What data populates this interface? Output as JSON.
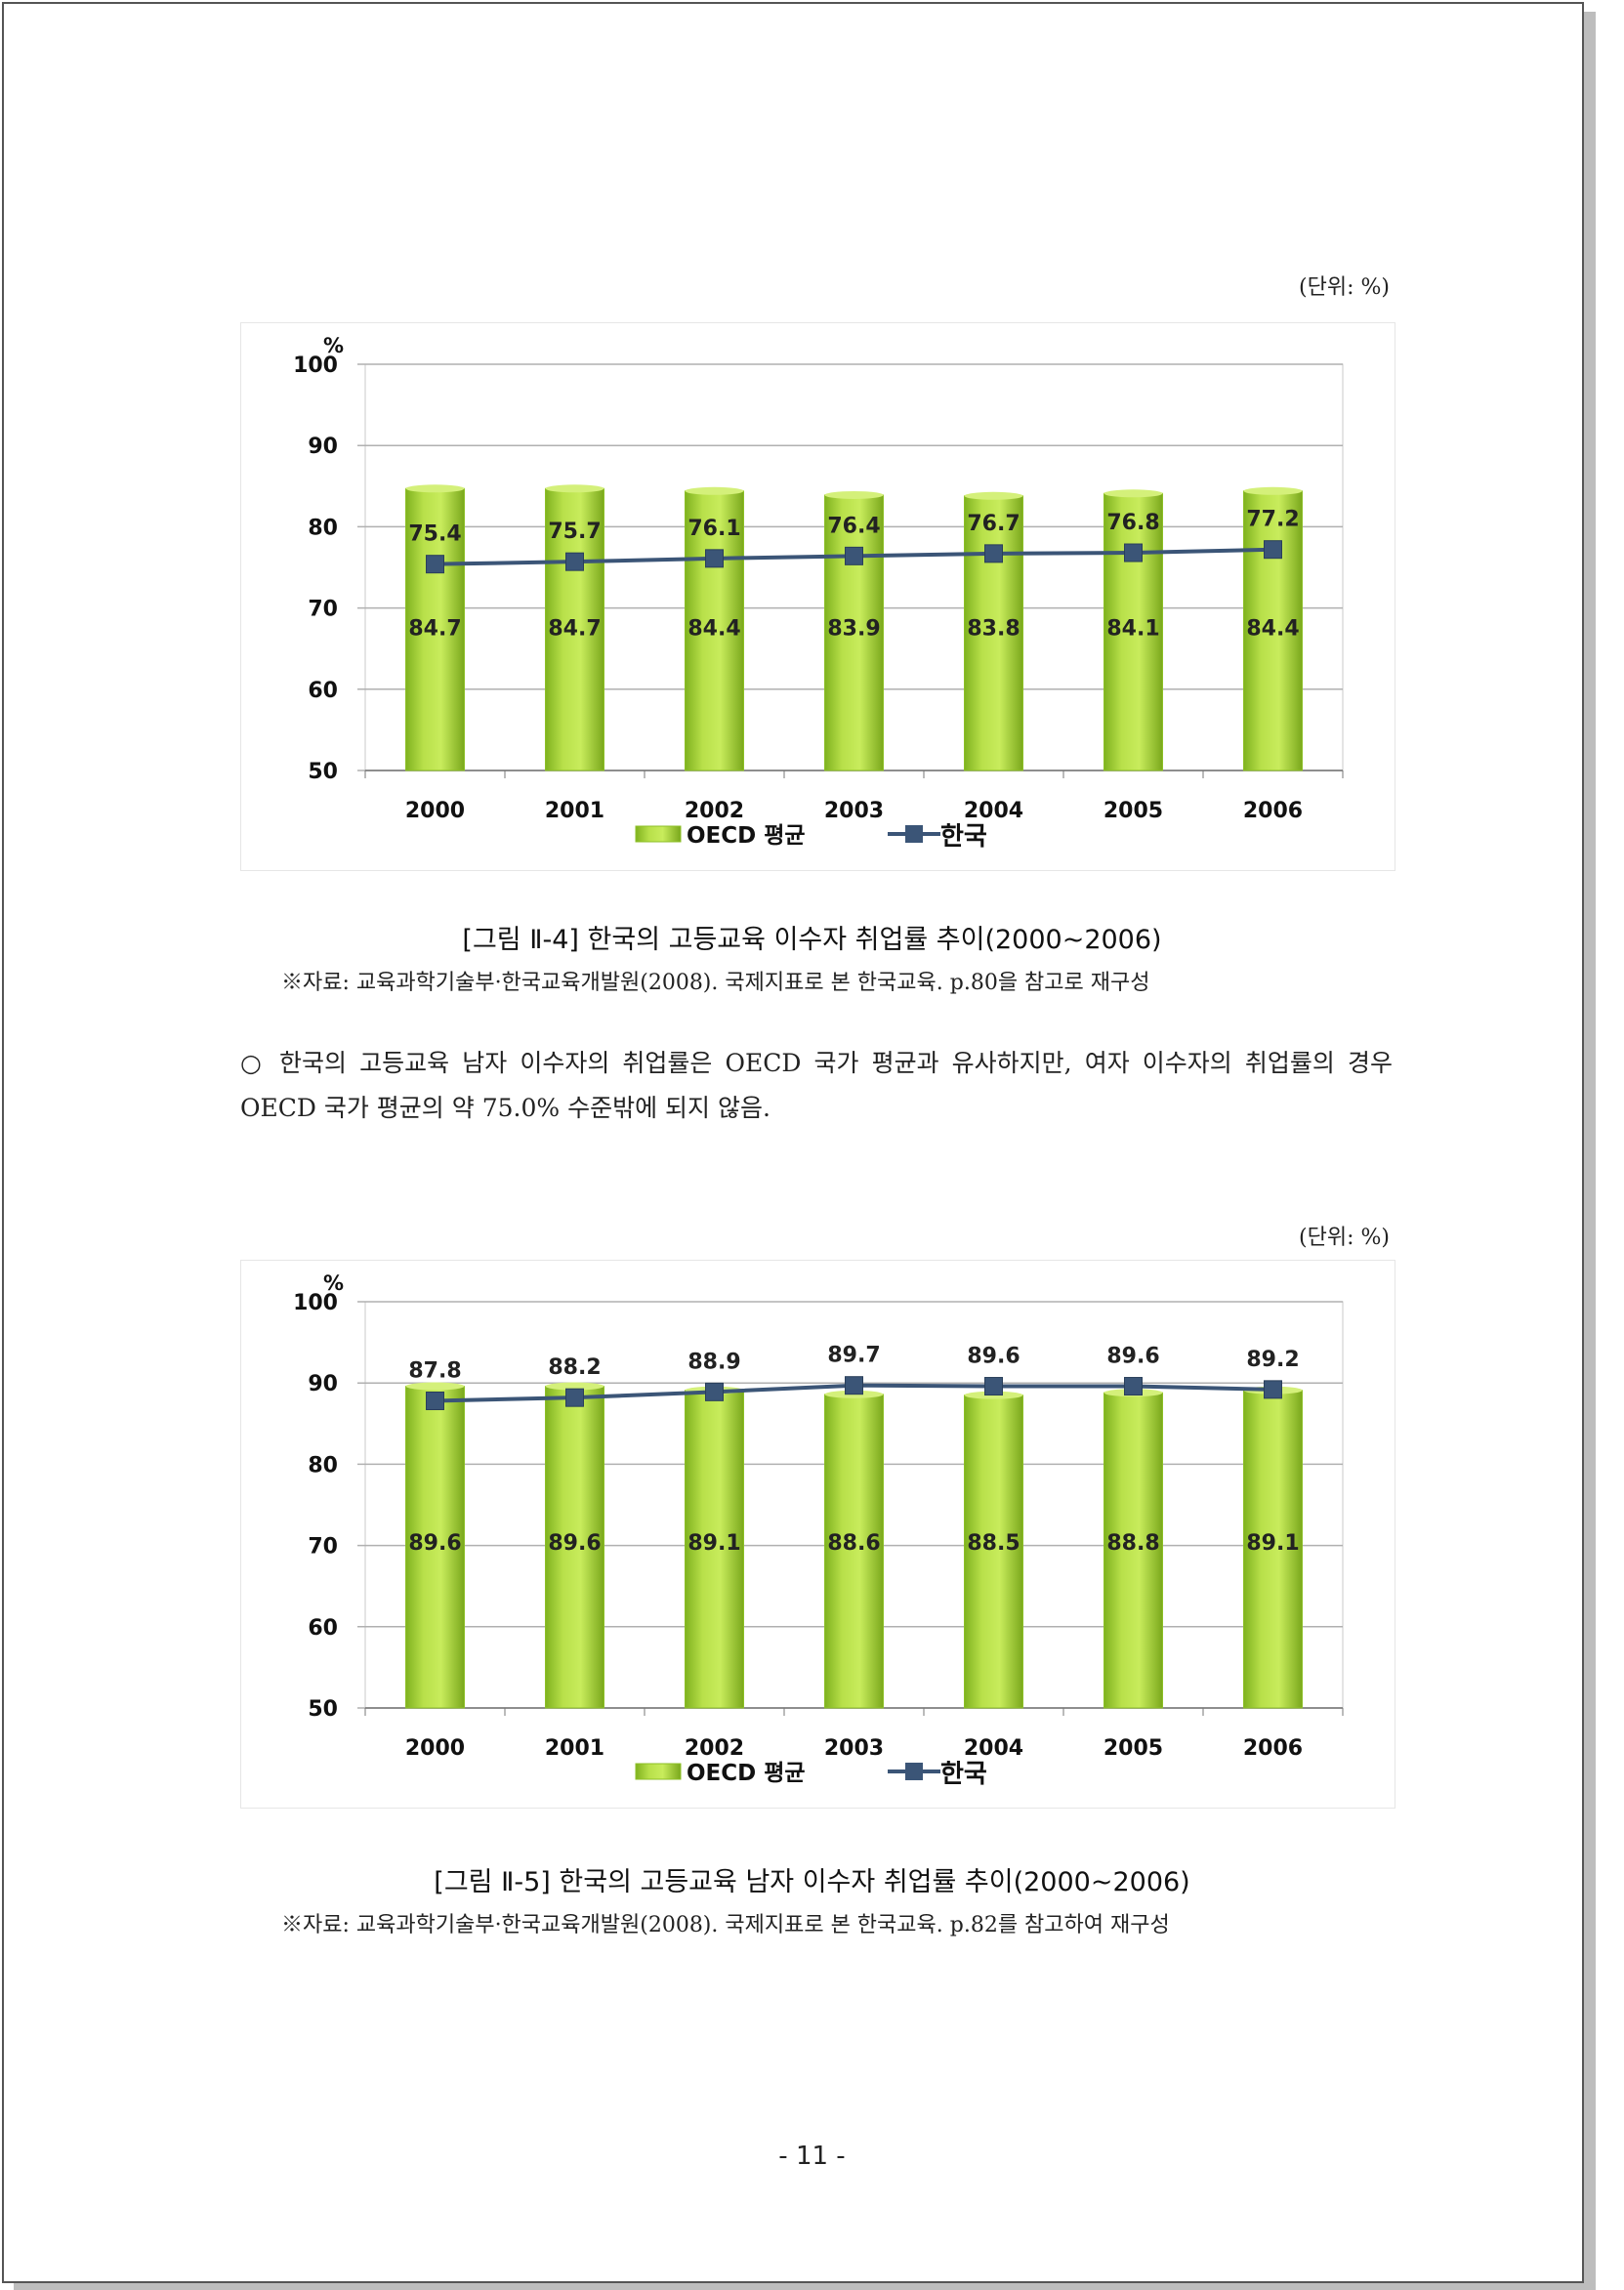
{
  "figure1": {
    "unit": "(단위: %)",
    "caption": "[그림 Ⅱ-4] 한국의 고등교육 이수자 취업률 추이(2000~2006)",
    "source": "※자료: 교육과학기술부·한국교육개발원(2008). 국제지표로 본 한국교육. p.80을 참고로 재구성"
  },
  "paragraph": "○ 한국의 고등교육 남자 이수자의 취업률은 OECD 국가 평균과 유사하지만, 여자 이수자의 취업률의 경우 OECD 국가 평균의 약 75.0% 수준밖에 되지 않음.",
  "figure2": {
    "unit": "(단위: %)",
    "caption": "[그림 Ⅱ-5] 한국의 고등교육 남자 이수자 취업률 추이(2000~2006)",
    "source": "※자료: 교육과학기술부·한국교육개발원(2008). 국제지표로 본 한국교육. p.82를 참고하여 재구성"
  },
  "page_number": "- 11 -",
  "chart_data": [
    {
      "type": "bar",
      "categories": [
        "2000",
        "2001",
        "2002",
        "2003",
        "2004",
        "2005",
        "2006"
      ],
      "series": [
        {
          "name": "OECD 평균",
          "type": "bar",
          "color": "#9acd32",
          "values": [
            84.7,
            84.7,
            84.4,
            83.9,
            83.8,
            84.1,
            84.4
          ]
        },
        {
          "name": "한국",
          "type": "line",
          "color": "#3b5577",
          "values": [
            75.4,
            75.7,
            76.1,
            76.4,
            76.7,
            76.8,
            77.2
          ]
        }
      ],
      "ylabel": "%",
      "yticks": [
        "50",
        "60",
        "70",
        "80",
        "90",
        "100"
      ],
      "ylim": [
        50,
        100
      ],
      "grid": true,
      "legend": "bottom"
    },
    {
      "type": "bar",
      "categories": [
        "2000",
        "2001",
        "2002",
        "2003",
        "2004",
        "2005",
        "2006"
      ],
      "series": [
        {
          "name": "OECD 평균",
          "type": "bar",
          "color": "#9acd32",
          "values": [
            89.6,
            89.6,
            89.1,
            88.6,
            88.5,
            88.8,
            89.1
          ]
        },
        {
          "name": "한국",
          "type": "line",
          "color": "#3b5577",
          "values": [
            87.8,
            88.2,
            88.9,
            89.7,
            89.6,
            89.6,
            89.2
          ]
        }
      ],
      "ylabel": "%",
      "yticks": [
        "50",
        "60",
        "70",
        "80",
        "90",
        "100"
      ],
      "ylim": [
        50,
        100
      ],
      "grid": true,
      "legend": "bottom"
    }
  ]
}
